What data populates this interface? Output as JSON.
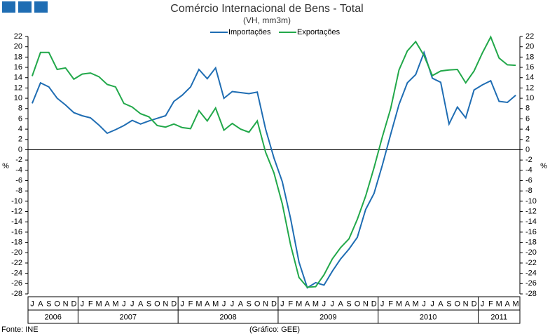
{
  "chart_data": {
    "type": "line",
    "title": "Comércio Internacional de Bens - Total",
    "subtitle": "(VH, mm3m)",
    "y_label": "%",
    "source": "Fonte: INE",
    "credit": "(Gráfico: GEE)",
    "categories": [
      "J",
      "A",
      "S",
      "O",
      "N",
      "D",
      "J",
      "F",
      "M",
      "A",
      "M",
      "J",
      "J",
      "A",
      "S",
      "O",
      "N",
      "D",
      "J",
      "F",
      "M",
      "A",
      "M",
      "J",
      "J",
      "A",
      "S",
      "O",
      "N",
      "D",
      "J",
      "F",
      "M",
      "A",
      "M",
      "J",
      "J",
      "A",
      "S",
      "O",
      "N",
      "D",
      "J",
      "F",
      "M",
      "A",
      "M",
      "J",
      "J",
      "A",
      "S",
      "O",
      "N",
      "D",
      "J",
      "F",
      "M",
      "A",
      "M"
    ],
    "years": [
      "2006",
      "2007",
      "2008",
      "2009",
      "2010",
      "2011"
    ],
    "series": [
      {
        "name": "Importações",
        "color": "#1f6db3",
        "values": [
          9,
          13,
          12.2,
          10,
          8.7,
          7.2,
          6.6,
          6.2,
          4.8,
          3.2,
          3.9,
          4.7,
          5.7,
          5.0,
          5.6,
          6.1,
          6.6,
          9.4,
          10.6,
          12.2,
          15.6,
          13.8,
          15.9,
          10.0,
          11.3,
          11.1,
          10.9,
          11.2,
          4.0,
          -1.6,
          -6.2,
          -13.4,
          -21.8,
          -26.8,
          -25.8,
          -26.3,
          -23.6,
          -21.2,
          -19.3,
          -17.0,
          -11.6,
          -8.5,
          -3.0,
          3.0,
          8.8,
          13.0,
          14.6,
          18.9,
          13.9,
          13.1,
          5.0,
          8.3,
          6.2,
          11.6,
          12.6,
          13.4,
          9.4,
          9.2,
          10.6
        ]
      },
      {
        "name": "Exportações",
        "color": "#22a84a",
        "values": [
          14.3,
          18.9,
          18.9,
          15.6,
          15.9,
          13.7,
          14.7,
          14.9,
          14.2,
          12.7,
          12.2,
          9.0,
          8.3,
          7.0,
          6.4,
          4.7,
          4.4,
          5.0,
          4.3,
          4.1,
          7.6,
          5.6,
          8.1,
          3.8,
          5.1,
          4.0,
          3.4,
          5.6,
          -0.5,
          -4.5,
          -10.5,
          -18.5,
          -24.8,
          -26.7,
          -26.6,
          -24.3,
          -21.2,
          -19.0,
          -17.3,
          -13.5,
          -9.0,
          -3.5,
          2.5,
          8.0,
          15.5,
          19.2,
          21.0,
          18.3,
          14.4,
          15.3,
          15.5,
          15.6,
          13.0,
          15.3,
          18.8,
          21.9,
          17.8,
          16.5,
          16.4
        ]
      }
    ],
    "ylim": [
      -28,
      22
    ],
    "yticks": [
      -28,
      -26,
      -24,
      -22,
      -20,
      -18,
      -16,
      -14,
      -12,
      -10,
      -8,
      -6,
      -4,
      -2,
      0,
      2,
      4,
      6,
      8,
      10,
      12,
      14,
      16,
      18,
      20,
      22
    ],
    "grid": false
  }
}
